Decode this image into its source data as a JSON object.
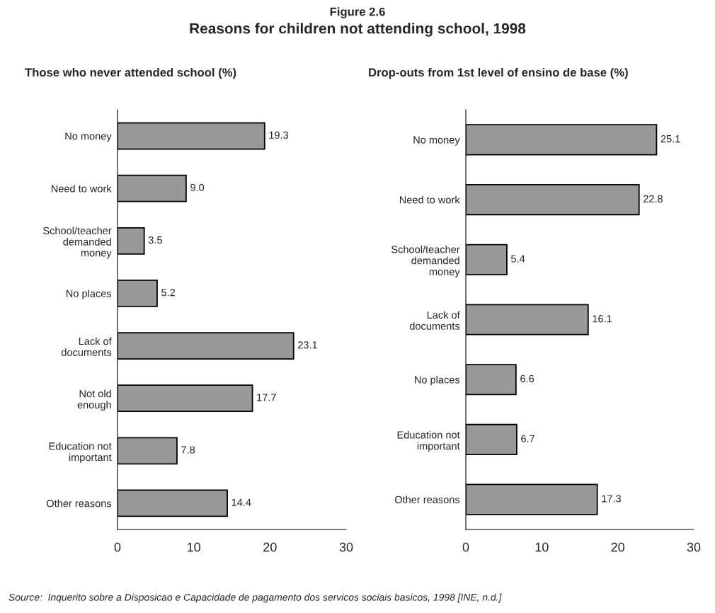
{
  "chart_data": [
    {
      "type": "bar",
      "orientation": "horizontal",
      "title": "Those who never attended school (%)",
      "categories": [
        "No money",
        "Need to work",
        "School/teacher\ndemanded\nmoney",
        "No places",
        "Lack of\ndocuments",
        "Not old\nenough",
        "Education not\nimportant",
        "Other reasons"
      ],
      "values": [
        19.3,
        9.0,
        3.5,
        5.2,
        23.1,
        17.7,
        7.8,
        14.4
      ],
      "value_labels": [
        "19.3",
        "9.0",
        "3.5",
        "5.2",
        "23.1",
        "17.7",
        "7.8",
        "14.4"
      ],
      "color": "#999999",
      "xlim": [
        0,
        30
      ],
      "xticks": [
        0,
        10,
        20,
        30
      ],
      "grid": false,
      "annotations": [
        "Figure 2.6",
        "Reasons for children not attending school, 1998",
        "Source:  Inquerito sobre a Disposicao e Capacidade de pagamento dos servicos sociais basicos, 1998 [INE, n.d.]"
      ]
    },
    {
      "type": "bar",
      "orientation": "horizontal",
      "title": "Drop-outs from 1st level of ensino de base (%)",
      "categories": [
        "No money",
        "Need to work",
        "School/teacher\ndemanded\nmoney",
        "Lack of\ndocuments",
        "No places",
        "Education not\nimportant",
        "Other reasons"
      ],
      "values": [
        25.1,
        22.8,
        5.4,
        16.1,
        6.6,
        6.7,
        17.3
      ],
      "value_labels": [
        "25.1",
        "22.8",
        "5.4",
        "16.1",
        "6.6",
        "6.7",
        "17.3"
      ],
      "color": "#999999",
      "xlim": [
        0,
        30
      ],
      "xticks": [
        0,
        10,
        20,
        30
      ],
      "grid": false
    }
  ]
}
